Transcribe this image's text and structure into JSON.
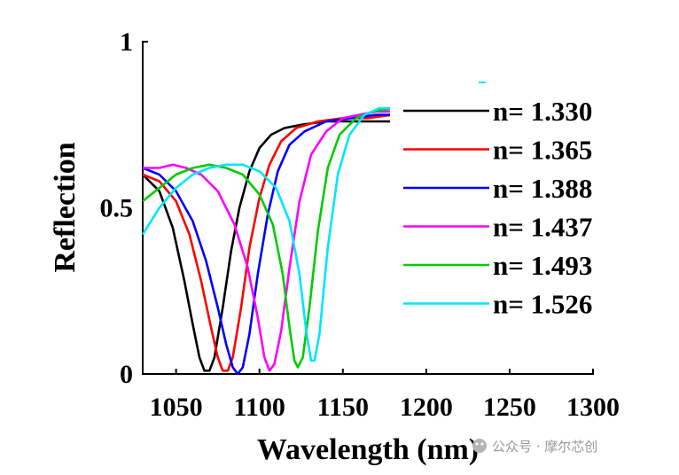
{
  "chart_data": {
    "type": "line",
    "title": "",
    "xlabel": "Wavelength (nm)",
    "ylabel": "Reflection",
    "xlim": [
      1030,
      1300
    ],
    "ylim": [
      0,
      1
    ],
    "xticks": [
      1050,
      1100,
      1150,
      1200,
      1250,
      1300
    ],
    "yticks": [
      0,
      0.5,
      1
    ],
    "ytick_labels": [
      "0",
      "0.5",
      "1"
    ],
    "grid": false,
    "legend_position": "right",
    "series": [
      {
        "name": "n= 1.330",
        "color": "#000000",
        "points": [
          [
            1030,
            0.6
          ],
          [
            1040,
            0.55
          ],
          [
            1048,
            0.44
          ],
          [
            1055,
            0.28
          ],
          [
            1060,
            0.15
          ],
          [
            1064,
            0.05
          ],
          [
            1067,
            0.01
          ],
          [
            1070,
            0.01
          ],
          [
            1073,
            0.05
          ],
          [
            1078,
            0.2
          ],
          [
            1083,
            0.37
          ],
          [
            1088,
            0.5
          ],
          [
            1094,
            0.61
          ],
          [
            1100,
            0.68
          ],
          [
            1107,
            0.72
          ],
          [
            1115,
            0.74
          ],
          [
            1125,
            0.75
          ],
          [
            1140,
            0.76
          ],
          [
            1160,
            0.76
          ],
          [
            1180,
            0.76
          ]
        ]
      },
      {
        "name": "n= 1.365",
        "color": "#ff0000",
        "points": [
          [
            1030,
            0.6
          ],
          [
            1040,
            0.58
          ],
          [
            1050,
            0.52
          ],
          [
            1058,
            0.42
          ],
          [
            1065,
            0.28
          ],
          [
            1071,
            0.14
          ],
          [
            1075,
            0.05
          ],
          [
            1078,
            0.01
          ],
          [
            1081,
            0.01
          ],
          [
            1084,
            0.05
          ],
          [
            1089,
            0.2
          ],
          [
            1094,
            0.38
          ],
          [
            1100,
            0.53
          ],
          [
            1106,
            0.63
          ],
          [
            1113,
            0.7
          ],
          [
            1122,
            0.74
          ],
          [
            1135,
            0.76
          ],
          [
            1150,
            0.77
          ],
          [
            1165,
            0.77
          ],
          [
            1180,
            0.78
          ]
        ]
      },
      {
        "name": "n= 1.388",
        "color": "#0000ff",
        "points": [
          [
            1030,
            0.62
          ],
          [
            1040,
            0.6
          ],
          [
            1050,
            0.55
          ],
          [
            1060,
            0.46
          ],
          [
            1068,
            0.34
          ],
          [
            1075,
            0.2
          ],
          [
            1080,
            0.09
          ],
          [
            1084,
            0.02
          ],
          [
            1087,
            0.0
          ],
          [
            1090,
            0.02
          ],
          [
            1094,
            0.12
          ],
          [
            1099,
            0.3
          ],
          [
            1105,
            0.48
          ],
          [
            1111,
            0.61
          ],
          [
            1118,
            0.69
          ],
          [
            1127,
            0.73
          ],
          [
            1140,
            0.76
          ],
          [
            1155,
            0.77
          ],
          [
            1170,
            0.78
          ],
          [
            1180,
            0.78
          ]
        ]
      },
      {
        "name": "n= 1.437",
        "color": "#ff00ff",
        "points": [
          [
            1030,
            0.62
          ],
          [
            1040,
            0.62
          ],
          [
            1048,
            0.63
          ],
          [
            1056,
            0.62
          ],
          [
            1065,
            0.6
          ],
          [
            1075,
            0.55
          ],
          [
            1085,
            0.45
          ],
          [
            1093,
            0.32
          ],
          [
            1099,
            0.17
          ],
          [
            1103,
            0.05
          ],
          [
            1106,
            0.01
          ],
          [
            1109,
            0.03
          ],
          [
            1113,
            0.13
          ],
          [
            1118,
            0.32
          ],
          [
            1124,
            0.52
          ],
          [
            1131,
            0.66
          ],
          [
            1140,
            0.73
          ],
          [
            1150,
            0.77
          ],
          [
            1160,
            0.78
          ],
          [
            1170,
            0.79
          ],
          [
            1180,
            0.79
          ]
        ]
      },
      {
        "name": "n= 1.493",
        "color": "#00cc00",
        "points": [
          [
            1030,
            0.52
          ],
          [
            1040,
            0.56
          ],
          [
            1050,
            0.6
          ],
          [
            1060,
            0.62
          ],
          [
            1070,
            0.63
          ],
          [
            1080,
            0.62
          ],
          [
            1090,
            0.6
          ],
          [
            1100,
            0.54
          ],
          [
            1108,
            0.45
          ],
          [
            1114,
            0.3
          ],
          [
            1118,
            0.14
          ],
          [
            1121,
            0.04
          ],
          [
            1123,
            0.02
          ],
          [
            1126,
            0.05
          ],
          [
            1130,
            0.2
          ],
          [
            1135,
            0.43
          ],
          [
            1141,
            0.62
          ],
          [
            1148,
            0.72
          ],
          [
            1158,
            0.77
          ],
          [
            1168,
            0.79
          ],
          [
            1180,
            0.8
          ]
        ]
      },
      {
        "name": "n= 1.526",
        "color": "#00e5ff",
        "points": [
          [
            1030,
            0.42
          ],
          [
            1040,
            0.5
          ],
          [
            1050,
            0.56
          ],
          [
            1060,
            0.6
          ],
          [
            1070,
            0.62
          ],
          [
            1080,
            0.63
          ],
          [
            1090,
            0.63
          ],
          [
            1100,
            0.61
          ],
          [
            1110,
            0.56
          ],
          [
            1118,
            0.46
          ],
          [
            1124,
            0.3
          ],
          [
            1128,
            0.13
          ],
          [
            1131,
            0.04
          ],
          [
            1133,
            0.04
          ],
          [
            1136,
            0.12
          ],
          [
            1141,
            0.38
          ],
          [
            1147,
            0.6
          ],
          [
            1154,
            0.72
          ],
          [
            1163,
            0.78
          ],
          [
            1172,
            0.8
          ],
          [
            1180,
            0.8
          ]
        ]
      }
    ]
  },
  "watermark": "公众号 · 摩尔芯创"
}
